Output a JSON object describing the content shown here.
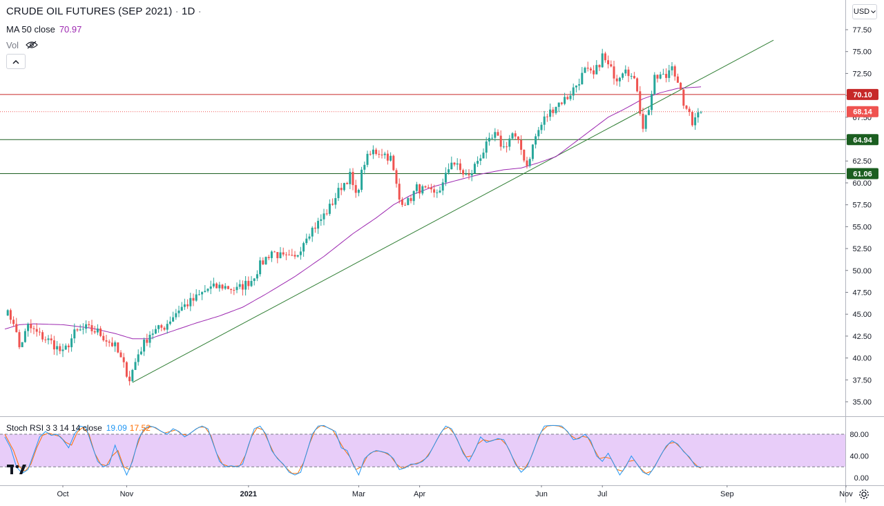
{
  "header": {
    "title": "CRUDE OIL FUTURES (SEP 2021)",
    "interval": "1D",
    "ma_label": "MA 50 close",
    "ma_value": "70.97",
    "vol_label": "Vol"
  },
  "currency": "USD",
  "colors": {
    "up": "#26a69a",
    "down": "#ef5350",
    "ma": "#9c27b0",
    "res": "#c62828",
    "sup": "#1b5e20",
    "trend": "#2e7d32",
    "k": "#2196f3",
    "d": "#ff6d00",
    "band": "#e8cdf9"
  },
  "chart_data": {
    "type": "candlestick",
    "price_axis": {
      "min": 35,
      "max": 77.5,
      "step": 2.5
    },
    "x_axis": {
      "labels": [
        {
          "label": "Oct",
          "index": 20
        },
        {
          "label": "Nov",
          "index": 42
        },
        {
          "label": "2021",
          "index": 84
        },
        {
          "label": "Mar",
          "index": 122
        },
        {
          "label": "Apr",
          "index": 143
        },
        {
          "label": "Jun",
          "index": 185
        },
        {
          "label": "Jul",
          "index": 206
        },
        {
          "label": "Sep",
          "index": 249
        },
        {
          "label": "Nov",
          "index": 290
        }
      ]
    },
    "last_price": "68.14",
    "levels": [
      {
        "value": 70.1,
        "label": "70.10",
        "kind": "resistance"
      },
      {
        "value": 64.94,
        "label": "64.94",
        "kind": "support"
      },
      {
        "value": 61.06,
        "label": "61.06",
        "kind": "support"
      }
    ],
    "trendline": {
      "from": [
        44,
        37.2
      ],
      "to": [
        265,
        76.3
      ]
    },
    "anchors": [
      [
        0,
        45.4
      ],
      [
        3,
        44.2
      ],
      [
        5,
        41.2
      ],
      [
        8,
        43.6
      ],
      [
        12,
        42.6
      ],
      [
        16,
        41.8
      ],
      [
        20,
        40.5
      ],
      [
        24,
        42.8
      ],
      [
        28,
        43.4
      ],
      [
        32,
        43.0
      ],
      [
        35,
        42.1
      ],
      [
        38,
        41.3
      ],
      [
        41,
        39.1
      ],
      [
        43,
        37.6
      ],
      [
        46,
        40.5
      ],
      [
        50,
        42.8
      ],
      [
        55,
        43.6
      ],
      [
        60,
        45.6
      ],
      [
        65,
        46.6
      ],
      [
        70,
        47.9
      ],
      [
        75,
        48.2
      ],
      [
        80,
        47.8
      ],
      [
        85,
        48.9
      ],
      [
        88,
        50.6
      ],
      [
        92,
        52.2
      ],
      [
        96,
        51.4
      ],
      [
        100,
        51.3
      ],
      [
        104,
        54.1
      ],
      [
        108,
        55.4
      ],
      [
        112,
        57.2
      ],
      [
        116,
        59.6
      ],
      [
        119,
        60.8
      ],
      [
        121,
        58.4
      ],
      [
        124,
        62.4
      ],
      [
        127,
        63.6
      ],
      [
        130,
        63.5
      ],
      [
        133,
        62.8
      ],
      [
        136,
        58.1
      ],
      [
        139,
        57.8
      ],
      [
        142,
        59.4
      ],
      [
        145,
        59.1
      ],
      [
        148,
        58.6
      ],
      [
        151,
        59.8
      ],
      [
        154,
        62.6
      ],
      [
        157,
        61.4
      ],
      [
        160,
        60.6
      ],
      [
        163,
        62.6
      ],
      [
        166,
        64.2
      ],
      [
        169,
        65.4
      ],
      [
        172,
        64.0
      ],
      [
        175,
        65.6
      ],
      [
        178,
        63.8
      ],
      [
        180,
        62.0
      ],
      [
        183,
        65.3
      ],
      [
        186,
        67.3
      ],
      [
        190,
        68.9
      ],
      [
        194,
        69.8
      ],
      [
        197,
        71.2
      ],
      [
        200,
        72.8
      ],
      [
        203,
        72.2
      ],
      [
        206,
        74.5
      ],
      [
        208,
        73.3
      ],
      [
        211,
        72.0
      ],
      [
        214,
        73.4
      ],
      [
        216,
        72.1
      ],
      [
        218,
        70.8
      ],
      [
        219,
        68.3
      ],
      [
        220,
        66.5
      ],
      [
        222,
        68.6
      ],
      [
        224,
        71.8
      ],
      [
        226,
        72.2
      ],
      [
        228,
        72.1
      ],
      [
        230,
        73.8
      ],
      [
        232,
        71.1
      ],
      [
        234,
        69.2
      ],
      [
        235,
        68.0
      ],
      [
        236,
        68.1
      ],
      [
        237,
        67.0
      ],
      [
        238,
        67.8
      ],
      [
        240,
        68.1
      ]
    ],
    "ma_anchors": [
      [
        0,
        43.3
      ],
      [
        5,
        43.8
      ],
      [
        10,
        43.9
      ],
      [
        20,
        43.8
      ],
      [
        30,
        43.4
      ],
      [
        38,
        42.8
      ],
      [
        44,
        42.2
      ],
      [
        50,
        42.2
      ],
      [
        58,
        43.1
      ],
      [
        66,
        44.0
      ],
      [
        74,
        44.8
      ],
      [
        82,
        45.8
      ],
      [
        90,
        47.3
      ],
      [
        100,
        49.3
      ],
      [
        110,
        51.6
      ],
      [
        120,
        54.2
      ],
      [
        128,
        56.0
      ],
      [
        134,
        57.5
      ],
      [
        140,
        58.6
      ],
      [
        148,
        59.6
      ],
      [
        156,
        60.3
      ],
      [
        164,
        61.0
      ],
      [
        172,
        61.5
      ],
      [
        178,
        61.7
      ],
      [
        184,
        62.3
      ],
      [
        190,
        63.0
      ],
      [
        196,
        64.5
      ],
      [
        202,
        66.0
      ],
      [
        208,
        67.5
      ],
      [
        214,
        68.5
      ],
      [
        220,
        69.6
      ],
      [
        226,
        70.3
      ],
      [
        232,
        70.8
      ],
      [
        240,
        70.97
      ]
    ],
    "stoch_rsi": {
      "label": "Stoch RSI 3 3 14 14 close",
      "k_value": "19.09",
      "d_value": "17.52",
      "axis_labels": [
        "80.00",
        "40.00",
        "0.00"
      ],
      "band": [
        20,
        80
      ],
      "k_anchors": [
        [
          0,
          75
        ],
        [
          2,
          55
        ],
        [
          4,
          20
        ],
        [
          6,
          8
        ],
        [
          8,
          15
        ],
        [
          10,
          45
        ],
        [
          12,
          75
        ],
        [
          14,
          85
        ],
        [
          16,
          78
        ],
        [
          18,
          80
        ],
        [
          20,
          70
        ],
        [
          22,
          55
        ],
        [
          24,
          80
        ],
        [
          26,
          95
        ],
        [
          28,
          92
        ],
        [
          30,
          60
        ],
        [
          32,
          30
        ],
        [
          34,
          20
        ],
        [
          36,
          25
        ],
        [
          38,
          60
        ],
        [
          40,
          30
        ],
        [
          42,
          5
        ],
        [
          44,
          30
        ],
        [
          46,
          70
        ],
        [
          48,
          90
        ],
        [
          50,
          95
        ],
        [
          52,
          92
        ],
        [
          54,
          85
        ],
        [
          56,
          80
        ],
        [
          58,
          90
        ],
        [
          60,
          85
        ],
        [
          62,
          75
        ],
        [
          64,
          82
        ],
        [
          66,
          90
        ],
        [
          68,
          95
        ],
        [
          70,
          90
        ],
        [
          72,
          60
        ],
        [
          74,
          30
        ],
        [
          76,
          20
        ],
        [
          78,
          22
        ],
        [
          80,
          20
        ],
        [
          82,
          25
        ],
        [
          84,
          60
        ],
        [
          86,
          90
        ],
        [
          88,
          95
        ],
        [
          90,
          80
        ],
        [
          92,
          50
        ],
        [
          94,
          35
        ],
        [
          96,
          25
        ],
        [
          98,
          10
        ],
        [
          100,
          5
        ],
        [
          102,
          10
        ],
        [
          104,
          45
        ],
        [
          106,
          80
        ],
        [
          108,
          95
        ],
        [
          110,
          96
        ],
        [
          112,
          90
        ],
        [
          114,
          85
        ],
        [
          116,
          55
        ],
        [
          118,
          50
        ],
        [
          120,
          25
        ],
        [
          122,
          5
        ],
        [
          124,
          35
        ],
        [
          126,
          45
        ],
        [
          128,
          50
        ],
        [
          130,
          48
        ],
        [
          132,
          45
        ],
        [
          134,
          35
        ],
        [
          136,
          15
        ],
        [
          138,
          18
        ],
        [
          140,
          25
        ],
        [
          142,
          25
        ],
        [
          144,
          30
        ],
        [
          146,
          40
        ],
        [
          148,
          60
        ],
        [
          150,
          80
        ],
        [
          152,
          95
        ],
        [
          154,
          90
        ],
        [
          156,
          70
        ],
        [
          158,
          45
        ],
        [
          160,
          30
        ],
        [
          162,
          50
        ],
        [
          164,
          75
        ],
        [
          166,
          65
        ],
        [
          168,
          68
        ],
        [
          170,
          72
        ],
        [
          172,
          70
        ],
        [
          174,
          50
        ],
        [
          176,
          25
        ],
        [
          178,
          10
        ],
        [
          180,
          20
        ],
        [
          182,
          45
        ],
        [
          184,
          75
        ],
        [
          186,
          95
        ],
        [
          188,
          96
        ],
        [
          190,
          96
        ],
        [
          192,
          95
        ],
        [
          194,
          85
        ],
        [
          196,
          70
        ],
        [
          198,
          72
        ],
        [
          200,
          80
        ],
        [
          202,
          68
        ],
        [
          204,
          40
        ],
        [
          206,
          30
        ],
        [
          208,
          45
        ],
        [
          210,
          25
        ],
        [
          212,
          5
        ],
        [
          214,
          20
        ],
        [
          216,
          40
        ],
        [
          218,
          25
        ],
        [
          220,
          10
        ],
        [
          222,
          5
        ],
        [
          224,
          20
        ],
        [
          226,
          40
        ],
        [
          228,
          58
        ],
        [
          230,
          68
        ],
        [
          232,
          62
        ],
        [
          234,
          48
        ],
        [
          236,
          38
        ],
        [
          238,
          22
        ],
        [
          240,
          19
        ]
      ],
      "d_anchors": [
        [
          0,
          80
        ],
        [
          3,
          50
        ],
        [
          5,
          20
        ],
        [
          7,
          12
        ],
        [
          9,
          25
        ],
        [
          11,
          55
        ],
        [
          13,
          78
        ],
        [
          15,
          82
        ],
        [
          17,
          79
        ],
        [
          19,
          76
        ],
        [
          21,
          65
        ],
        [
          23,
          60
        ],
        [
          25,
          84
        ],
        [
          27,
          93
        ],
        [
          29,
          80
        ],
        [
          31,
          45
        ],
        [
          33,
          25
        ],
        [
          35,
          22
        ],
        [
          37,
          40
        ],
        [
          39,
          50
        ],
        [
          41,
          20
        ],
        [
          43,
          15
        ],
        [
          45,
          50
        ],
        [
          47,
          80
        ],
        [
          49,
          92
        ],
        [
          51,
          94
        ],
        [
          53,
          88
        ],
        [
          55,
          82
        ],
        [
          57,
          85
        ],
        [
          59,
          88
        ],
        [
          61,
          80
        ],
        [
          63,
          78
        ],
        [
          65,
          86
        ],
        [
          67,
          93
        ],
        [
          69,
          93
        ],
        [
          71,
          78
        ],
        [
          73,
          45
        ],
        [
          75,
          25
        ],
        [
          77,
          21
        ],
        [
          79,
          21
        ],
        [
          81,
          22
        ],
        [
          83,
          42
        ],
        [
          85,
          75
        ],
        [
          87,
          92
        ],
        [
          89,
          88
        ],
        [
          91,
          65
        ],
        [
          93,
          42
        ],
        [
          95,
          30
        ],
        [
          97,
          18
        ],
        [
          99,
          8
        ],
        [
          101,
          8
        ],
        [
          103,
          28
        ],
        [
          105,
          62
        ],
        [
          107,
          88
        ],
        [
          109,
          96
        ],
        [
          111,
          93
        ],
        [
          113,
          88
        ],
        [
          115,
          70
        ],
        [
          117,
          52
        ],
        [
          119,
          38
        ],
        [
          121,
          15
        ],
        [
          123,
          20
        ],
        [
          125,
          40
        ],
        [
          127,
          48
        ],
        [
          129,
          49
        ],
        [
          131,
          46
        ],
        [
          133,
          40
        ],
        [
          135,
          25
        ],
        [
          137,
          17
        ],
        [
          139,
          22
        ],
        [
          141,
          25
        ],
        [
          143,
          28
        ],
        [
          145,
          35
        ],
        [
          147,
          50
        ],
        [
          149,
          70
        ],
        [
          151,
          88
        ],
        [
          153,
          93
        ],
        [
          155,
          80
        ],
        [
          157,
          58
        ],
        [
          159,
          38
        ],
        [
          161,
          40
        ],
        [
          163,
          62
        ],
        [
          165,
          70
        ],
        [
          167,
          67
        ],
        [
          169,
          70
        ],
        [
          171,
          71
        ],
        [
          173,
          60
        ],
        [
          175,
          38
        ],
        [
          177,
          18
        ],
        [
          179,
          15
        ],
        [
          181,
          32
        ],
        [
          183,
          60
        ],
        [
          185,
          85
        ],
        [
          187,
          95
        ],
        [
          189,
          96
        ],
        [
          191,
          95
        ],
        [
          193,
          90
        ],
        [
          195,
          78
        ],
        [
          197,
          71
        ],
        [
          199,
          76
        ],
        [
          201,
          74
        ],
        [
          203,
          54
        ],
        [
          205,
          35
        ],
        [
          207,
          38
        ],
        [
          209,
          35
        ],
        [
          211,
          15
        ],
        [
          213,
          12
        ],
        [
          215,
          30
        ],
        [
          217,
          32
        ],
        [
          219,
          18
        ],
        [
          221,
          8
        ],
        [
          223,
          12
        ],
        [
          225,
          30
        ],
        [
          227,
          49
        ],
        [
          229,
          63
        ],
        [
          231,
          65
        ],
        [
          233,
          55
        ],
        [
          235,
          43
        ],
        [
          237,
          30
        ],
        [
          239,
          20
        ],
        [
          240,
          17.5
        ]
      ]
    }
  }
}
